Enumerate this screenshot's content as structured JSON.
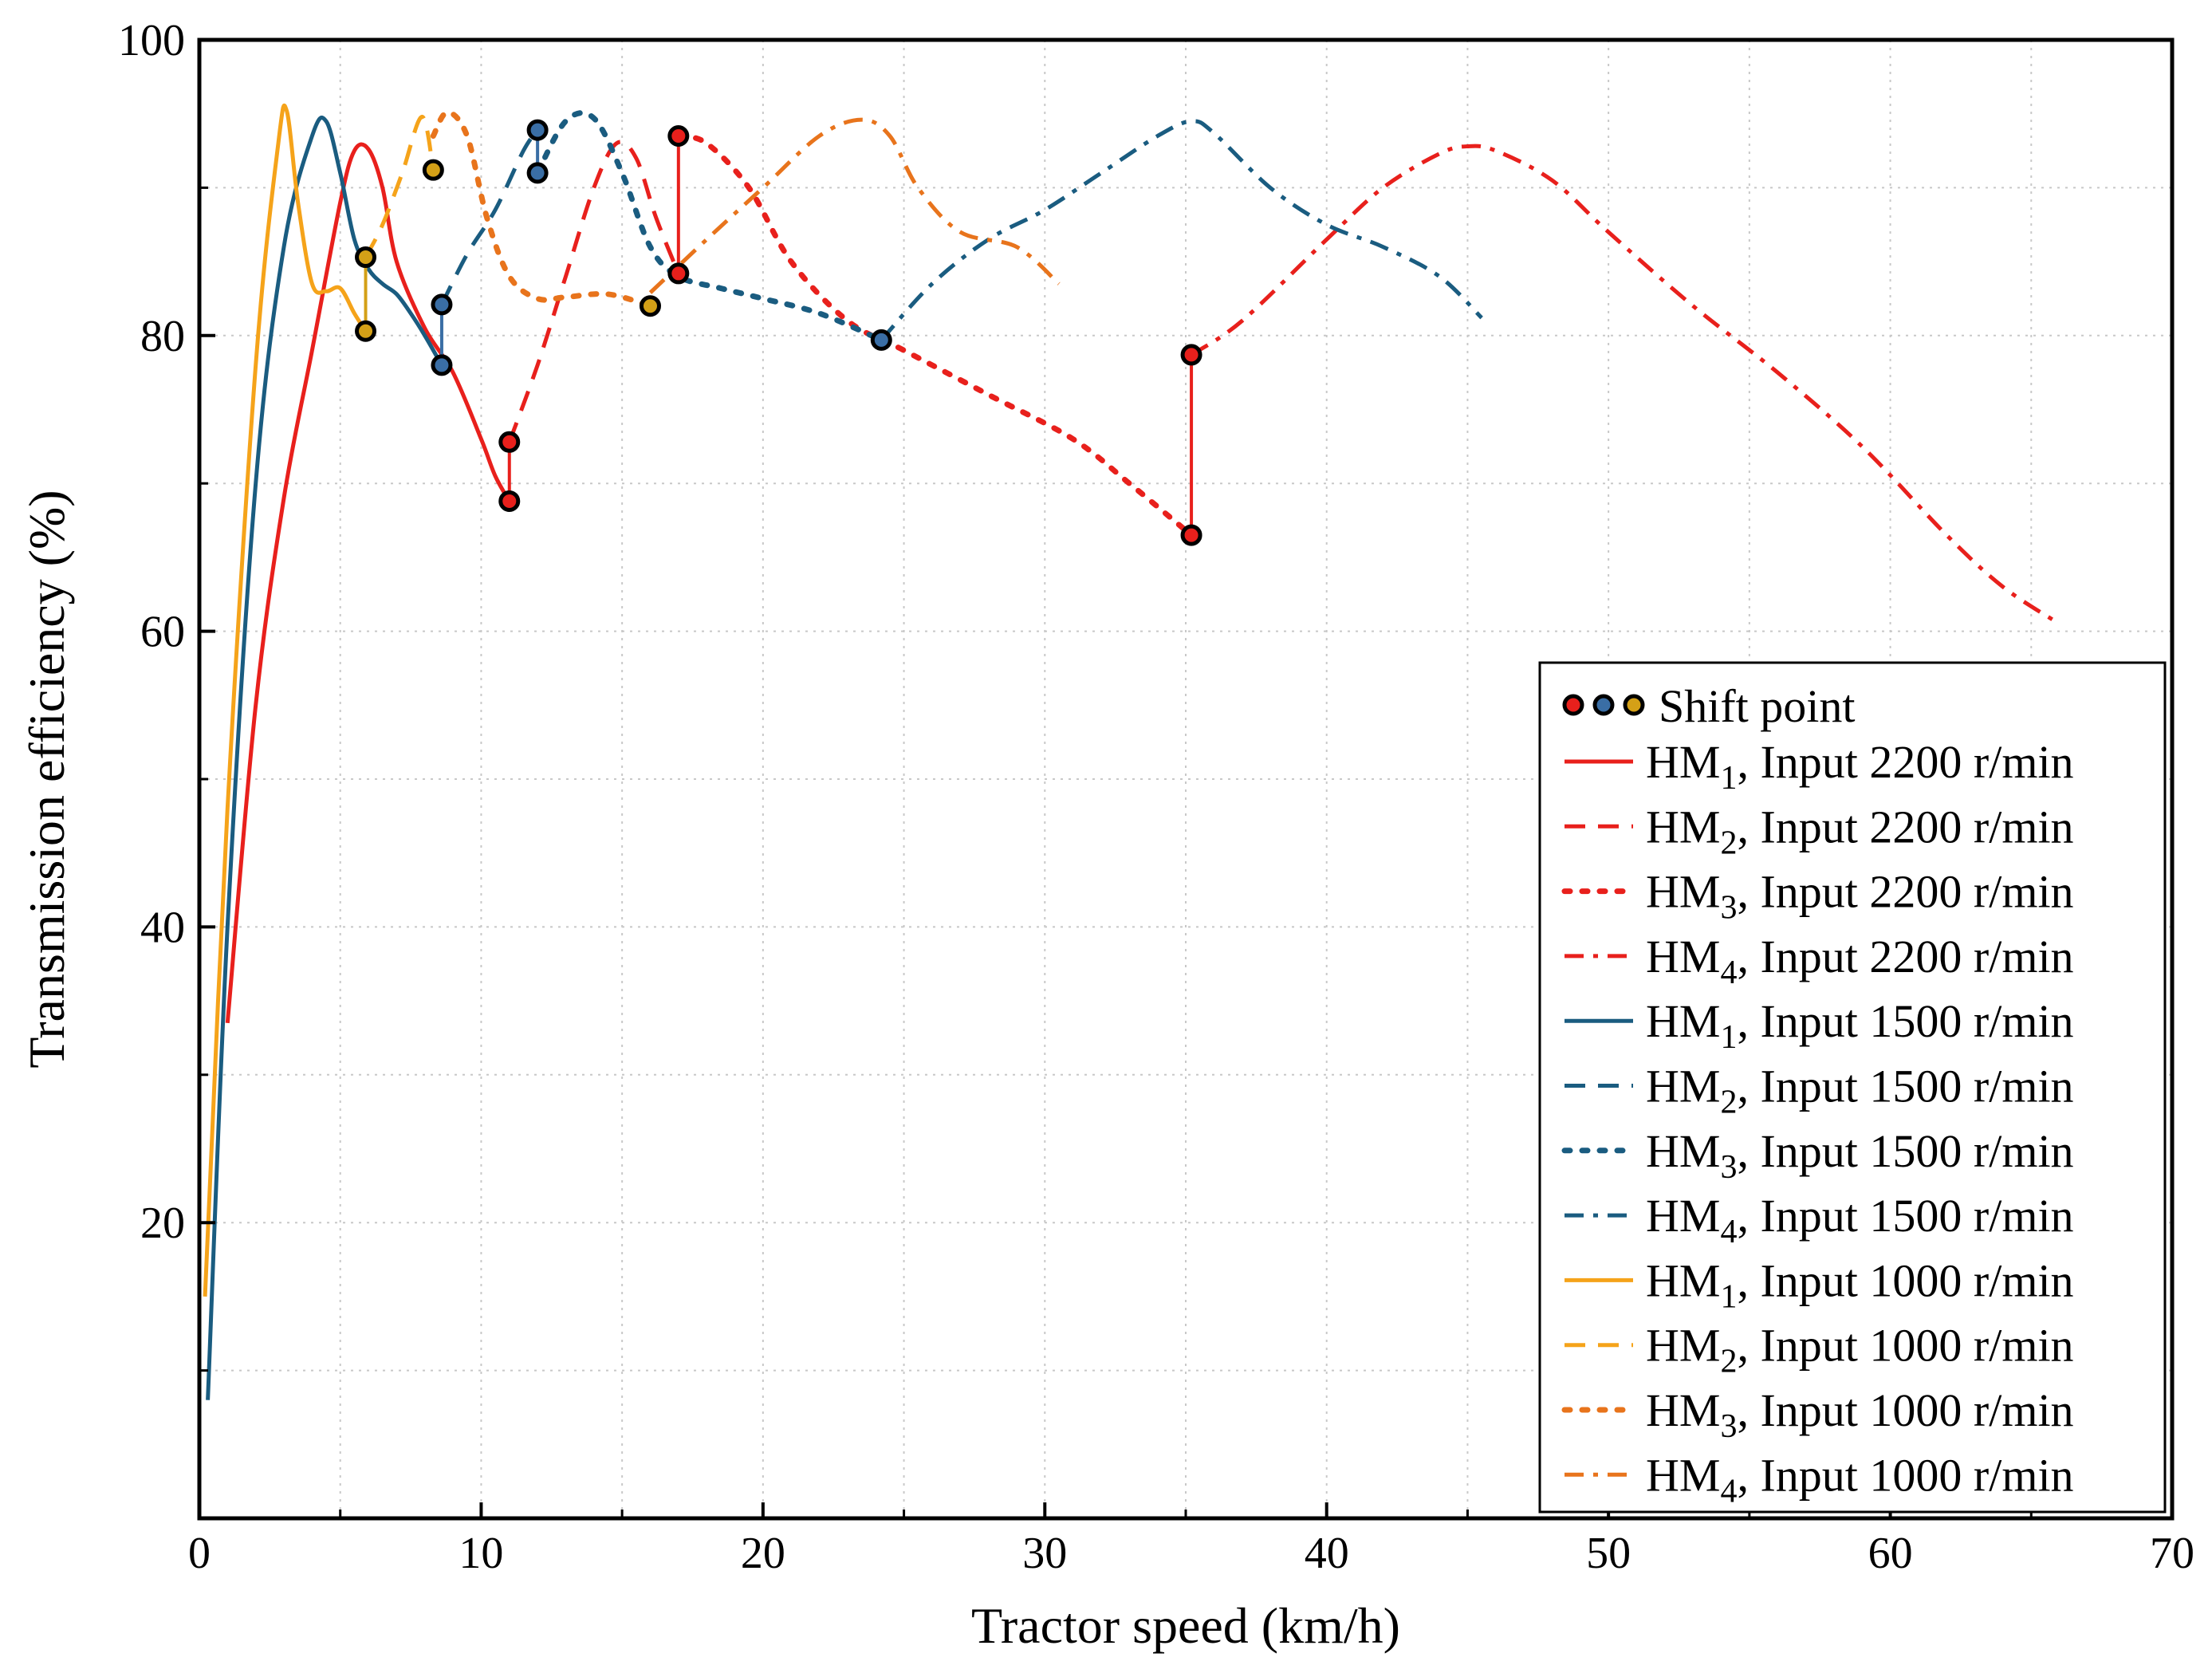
{
  "chart_data": {
    "type": "line",
    "xlabel": "Tractor speed (km/h)",
    "ylabel": "Transmission efficiency (%)",
    "xlim": [
      0,
      70
    ],
    "ylim": [
      0,
      100
    ],
    "xticks": [
      0,
      10,
      20,
      30,
      40,
      50,
      60,
      70
    ],
    "yticks": [
      20,
      40,
      60,
      80,
      100
    ],
    "grid": true,
    "legend_position": "lower-right",
    "colors": {
      "red": "#e8201c",
      "blue": "#1a5c80",
      "yellow": "#f5a31a",
      "orange": "#e8741c",
      "shift_red": "#e8201c",
      "shift_blue": "#3a6ea5",
      "shift_yellow": "#d4a017"
    },
    "series": [
      {
        "name": "HM",
        "sub": "1",
        "suffix": ", Input 2200 r/min",
        "color": "#e8201c",
        "dash": "solid",
        "x": [
          1.0,
          2.0,
          3.0,
          4.0,
          5.0,
          5.5,
          6.0,
          6.5,
          7.0,
          8.0,
          9.0,
          10.0,
          10.5,
          11.0
        ],
        "y": [
          33.5,
          55,
          69,
          79,
          89,
          92.5,
          92.6,
          90,
          85,
          80.5,
          77.5,
          73,
          70.5,
          68.8
        ]
      },
      {
        "name": "HM",
        "sub": "2",
        "suffix": ", Input 2200 r/min",
        "color": "#e8201c",
        "dash": "dashed",
        "x": [
          11.0,
          12.0,
          13.0,
          14.0,
          14.8,
          15.5,
          16.2,
          17.0
        ],
        "y": [
          72.8,
          78,
          84,
          90,
          93,
          92,
          88,
          84.2
        ]
      },
      {
        "name": "HM",
        "sub": "3",
        "suffix": ", Input 2200 r/min",
        "color": "#e8201c",
        "dash": "dotted",
        "x": [
          17.0,
          18.0,
          19.5,
          21.0,
          23.0,
          25.0,
          28.0,
          31.0,
          33.0,
          35.2
        ],
        "y": [
          93.5,
          93,
          90,
          85,
          81,
          79,
          76,
          73,
          70,
          66.5
        ]
      },
      {
        "name": "HM",
        "sub": "4",
        "suffix": ", Input 2200 r/min",
        "color": "#e8201c",
        "dash": "dashdot",
        "x": [
          35.2,
          37.0,
          40.0,
          42.0,
          44.0,
          45.0,
          46.0,
          48.0,
          50.0,
          53.0,
          56.0,
          59.0,
          62.0,
          64.0,
          66.0
        ],
        "y": [
          78.7,
          81,
          86.5,
          90,
          92.3,
          92.8,
          92.5,
          90.5,
          87,
          82,
          77.5,
          72.5,
          66.5,
          63,
          60.5
        ]
      },
      {
        "name": "HM",
        "sub": "1",
        "suffix": ", Input 1500 r/min",
        "color": "#1a5c80",
        "dash": "solid",
        "x": [
          0.3,
          1.0,
          2.0,
          3.0,
          4.0,
          4.5,
          5.0,
          5.5,
          6.0,
          6.5,
          7.0,
          7.5,
          8.0,
          8.6
        ],
        "y": [
          8,
          40,
          70,
          86,
          93.5,
          94.5,
          91,
          86.5,
          84.5,
          83.5,
          82.8,
          81.5,
          80,
          78
        ]
      },
      {
        "name": "HM",
        "sub": "2",
        "suffix": ", Input 1500 r/min",
        "color": "#1a5c80",
        "dash": "dashed",
        "x": [
          8.6,
          9.5,
          10.5,
          11.5,
          12.0
        ],
        "y": [
          82.1,
          85.5,
          88.5,
          92.5,
          93.9
        ]
      },
      {
        "name": "HM",
        "sub": "3",
        "suffix": ", Input 1500 r/min",
        "color": "#1a5c80",
        "dash": "dotted",
        "x": [
          12.0,
          13.0,
          14.0,
          15.0,
          16.0,
          17.0,
          18.5,
          20.0,
          22.0,
          24.2
        ],
        "y": [
          91.0,
          94.5,
          94.7,
          91,
          86,
          84,
          83.2,
          82.5,
          81.5,
          79.7
        ]
      },
      {
        "name": "HM",
        "sub": "4",
        "suffix": ", Input 1500 r/min",
        "color": "#1a5c80",
        "dash": "dashdot",
        "x": [
          24.2,
          26.0,
          28.0,
          30.0,
          32.0,
          34.0,
          35.2,
          36.0,
          38.0,
          40.0,
          42.0,
          44.0,
          45.5
        ],
        "y": [
          79.7,
          83.5,
          86.5,
          88.5,
          91,
          93.5,
          94.5,
          93.7,
          90,
          87.5,
          86,
          84,
          81.2
        ]
      },
      {
        "name": "HM",
        "sub": "1",
        "suffix": ", Input 1000 r/min",
        "color": "#f5a31a",
        "dash": "solid",
        "x": [
          0.2,
          1.0,
          2.0,
          2.8,
          3.1,
          3.5,
          4.0,
          4.5,
          5.0,
          5.5,
          5.9
        ],
        "y": [
          15,
          48,
          78,
          93,
          95.2,
          89,
          83.5,
          83,
          83.2,
          81.5,
          80.3
        ]
      },
      {
        "name": "HM",
        "sub": "2",
        "suffix": ", Input 1000 r/min",
        "color": "#f5a31a",
        "dash": "dashed",
        "x": [
          5.9,
          6.5,
          7.2,
          7.9,
          8.3
        ],
        "y": [
          85.3,
          87.5,
          91,
          94.8,
          91.2
        ]
      },
      {
        "name": "HM",
        "sub": "3",
        "suffix": ", Input 1000 r/min",
        "color": "#e8741c",
        "dash": "dotted",
        "x": [
          8.3,
          8.8,
          9.5,
          10.2,
          11.0,
          12.0,
          13.0,
          14.5,
          16.0
        ],
        "y": [
          93.5,
          95.1,
          93.5,
          88,
          84,
          82.5,
          82.6,
          82.8,
          82
        ]
      },
      {
        "name": "HM",
        "sub": "4",
        "suffix": ", Input 1000 r/min",
        "color": "#e8741c",
        "dash": "dashdot",
        "x": [
          16.0,
          18.0,
          20.0,
          22.0,
          23.5,
          24.5,
          25.5,
          27.0,
          29.0,
          30.5
        ],
        "y": [
          82.9,
          86.5,
          90,
          93.5,
          94.6,
          93.5,
          90,
          87,
          86,
          83.5
        ]
      }
    ],
    "shift_points": [
      {
        "x": 11.0,
        "y": [
          68.8,
          72.8
        ],
        "color": "#e8201c"
      },
      {
        "x": 17.0,
        "y": [
          84.2,
          93.5
        ],
        "color": "#e8201c"
      },
      {
        "x": 35.2,
        "y": [
          66.5,
          78.7
        ],
        "color": "#e8201c"
      },
      {
        "x": 8.6,
        "y": [
          78.0,
          82.1
        ],
        "color": "#3a6ea5"
      },
      {
        "x": 12.0,
        "y": [
          91.0,
          93.9
        ],
        "color": "#3a6ea5"
      },
      {
        "x": 24.2,
        "y": [
          79.7
        ],
        "color": "#3a6ea5"
      },
      {
        "x": 5.9,
        "y": [
          80.3,
          85.3
        ],
        "color": "#d4a017"
      },
      {
        "x": 8.3,
        "y": [
          91.2
        ],
        "color": "#d4a017"
      },
      {
        "x": 16.0,
        "y": [
          82.0
        ],
        "color": "#d4a017"
      }
    ],
    "legend": {
      "shift_label": "Shift point",
      "shift_colors": [
        "#e8201c",
        "#3a6ea5",
        "#d4a017"
      ]
    }
  }
}
